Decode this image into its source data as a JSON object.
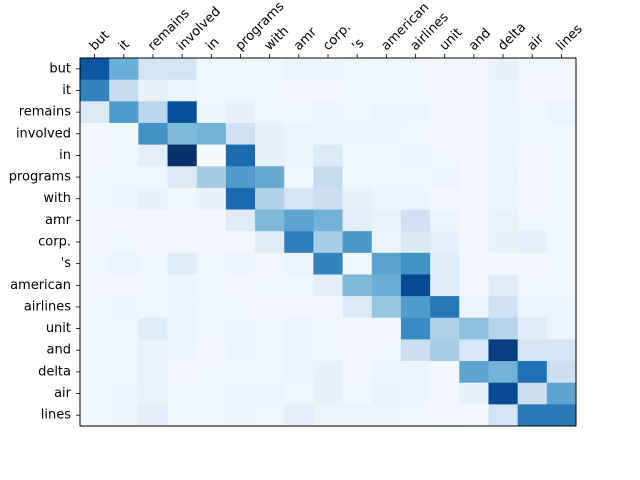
{
  "chart_data": {
    "type": "heatmap",
    "title": "",
    "xlabel": "",
    "ylabel": "",
    "x_tick_position": "top",
    "x_tick_rotation_deg": 45,
    "colormap": "Blues",
    "value_range": [
      0,
      1
    ],
    "x_labels": [
      "but",
      "it",
      "remains",
      "involved",
      "in",
      "programs",
      "with",
      "amr",
      "corp.",
      "'s",
      "american",
      "airlines",
      "unit",
      "and",
      "delta",
      "air",
      "lines"
    ],
    "y_labels": [
      "but",
      "it",
      "remains",
      "involved",
      "in",
      "programs",
      "with",
      "amr",
      "corp.",
      "'s",
      "american",
      "airlines",
      "unit",
      "and",
      "delta",
      "air",
      "lines"
    ],
    "values": [
      [
        0.85,
        0.5,
        0.18,
        0.18,
        0.04,
        0.04,
        0.04,
        0.06,
        0.06,
        0.04,
        0.04,
        0.04,
        0.03,
        0.02,
        0.08,
        0.04,
        0.04
      ],
      [
        0.68,
        0.25,
        0.08,
        0.06,
        0.04,
        0.04,
        0.04,
        0.03,
        0.03,
        0.04,
        0.04,
        0.04,
        0.03,
        0.02,
        0.05,
        0.03,
        0.03
      ],
      [
        0.14,
        0.58,
        0.28,
        0.88,
        0.05,
        0.08,
        0.04,
        0.04,
        0.05,
        0.04,
        0.05,
        0.05,
        0.03,
        0.02,
        0.05,
        0.04,
        0.06
      ],
      [
        0.03,
        0.04,
        0.62,
        0.45,
        0.48,
        0.2,
        0.08,
        0.06,
        0.05,
        0.05,
        0.06,
        0.04,
        0.03,
        0.02,
        0.05,
        0.04,
        0.04
      ],
      [
        0.03,
        0.04,
        0.09,
        1.0,
        0.01,
        0.78,
        0.08,
        0.06,
        0.14,
        0.04,
        0.04,
        0.05,
        0.04,
        0.02,
        0.05,
        0.03,
        0.04
      ],
      [
        0.04,
        0.04,
        0.04,
        0.14,
        0.36,
        0.58,
        0.52,
        0.04,
        0.25,
        0.04,
        0.04,
        0.04,
        0.05,
        0.02,
        0.06,
        0.03,
        0.04
      ],
      [
        0.04,
        0.05,
        0.08,
        0.04,
        0.08,
        0.78,
        0.32,
        0.18,
        0.22,
        0.08,
        0.05,
        0.05,
        0.03,
        0.02,
        0.05,
        0.03,
        0.04
      ],
      [
        0.03,
        0.03,
        0.03,
        0.03,
        0.03,
        0.12,
        0.45,
        0.55,
        0.48,
        0.1,
        0.07,
        0.2,
        0.06,
        0.02,
        0.07,
        0.04,
        0.04
      ],
      [
        0.03,
        0.04,
        0.03,
        0.03,
        0.03,
        0.03,
        0.12,
        0.7,
        0.35,
        0.6,
        0.06,
        0.15,
        0.09,
        0.02,
        0.08,
        0.09,
        0.04
      ],
      [
        0.04,
        0.06,
        0.04,
        0.12,
        0.04,
        0.05,
        0.03,
        0.06,
        0.68,
        0.04,
        0.55,
        0.62,
        0.12,
        0.02,
        0.02,
        0.03,
        0.04
      ],
      [
        0.03,
        0.03,
        0.04,
        0.05,
        0.04,
        0.03,
        0.04,
        0.04,
        0.1,
        0.45,
        0.5,
        0.9,
        0.12,
        0.02,
        0.12,
        0.04,
        0.04
      ],
      [
        0.04,
        0.05,
        0.04,
        0.05,
        0.04,
        0.04,
        0.03,
        0.03,
        0.03,
        0.14,
        0.4,
        0.58,
        0.72,
        0.06,
        0.2,
        0.06,
        0.06
      ],
      [
        0.04,
        0.04,
        0.12,
        0.05,
        0.04,
        0.05,
        0.04,
        0.05,
        0.04,
        0.03,
        0.03,
        0.65,
        0.32,
        0.42,
        0.3,
        0.12,
        0.06
      ],
      [
        0.04,
        0.04,
        0.07,
        0.05,
        0.03,
        0.05,
        0.04,
        0.05,
        0.04,
        0.03,
        0.04,
        0.22,
        0.35,
        0.16,
        0.95,
        0.18,
        0.18
      ],
      [
        0.04,
        0.04,
        0.07,
        0.02,
        0.04,
        0.04,
        0.04,
        0.05,
        0.08,
        0.03,
        0.05,
        0.05,
        0.03,
        0.55,
        0.48,
        0.75,
        0.22
      ],
      [
        0.04,
        0.05,
        0.07,
        0.04,
        0.04,
        0.06,
        0.05,
        0.04,
        0.08,
        0.04,
        0.07,
        0.05,
        0.03,
        0.08,
        0.9,
        0.22,
        0.55
      ],
      [
        0.04,
        0.05,
        0.1,
        0.04,
        0.04,
        0.06,
        0.04,
        0.09,
        0.06,
        0.06,
        0.06,
        0.04,
        0.03,
        0.02,
        0.18,
        0.72,
        0.72
      ]
    ]
  }
}
